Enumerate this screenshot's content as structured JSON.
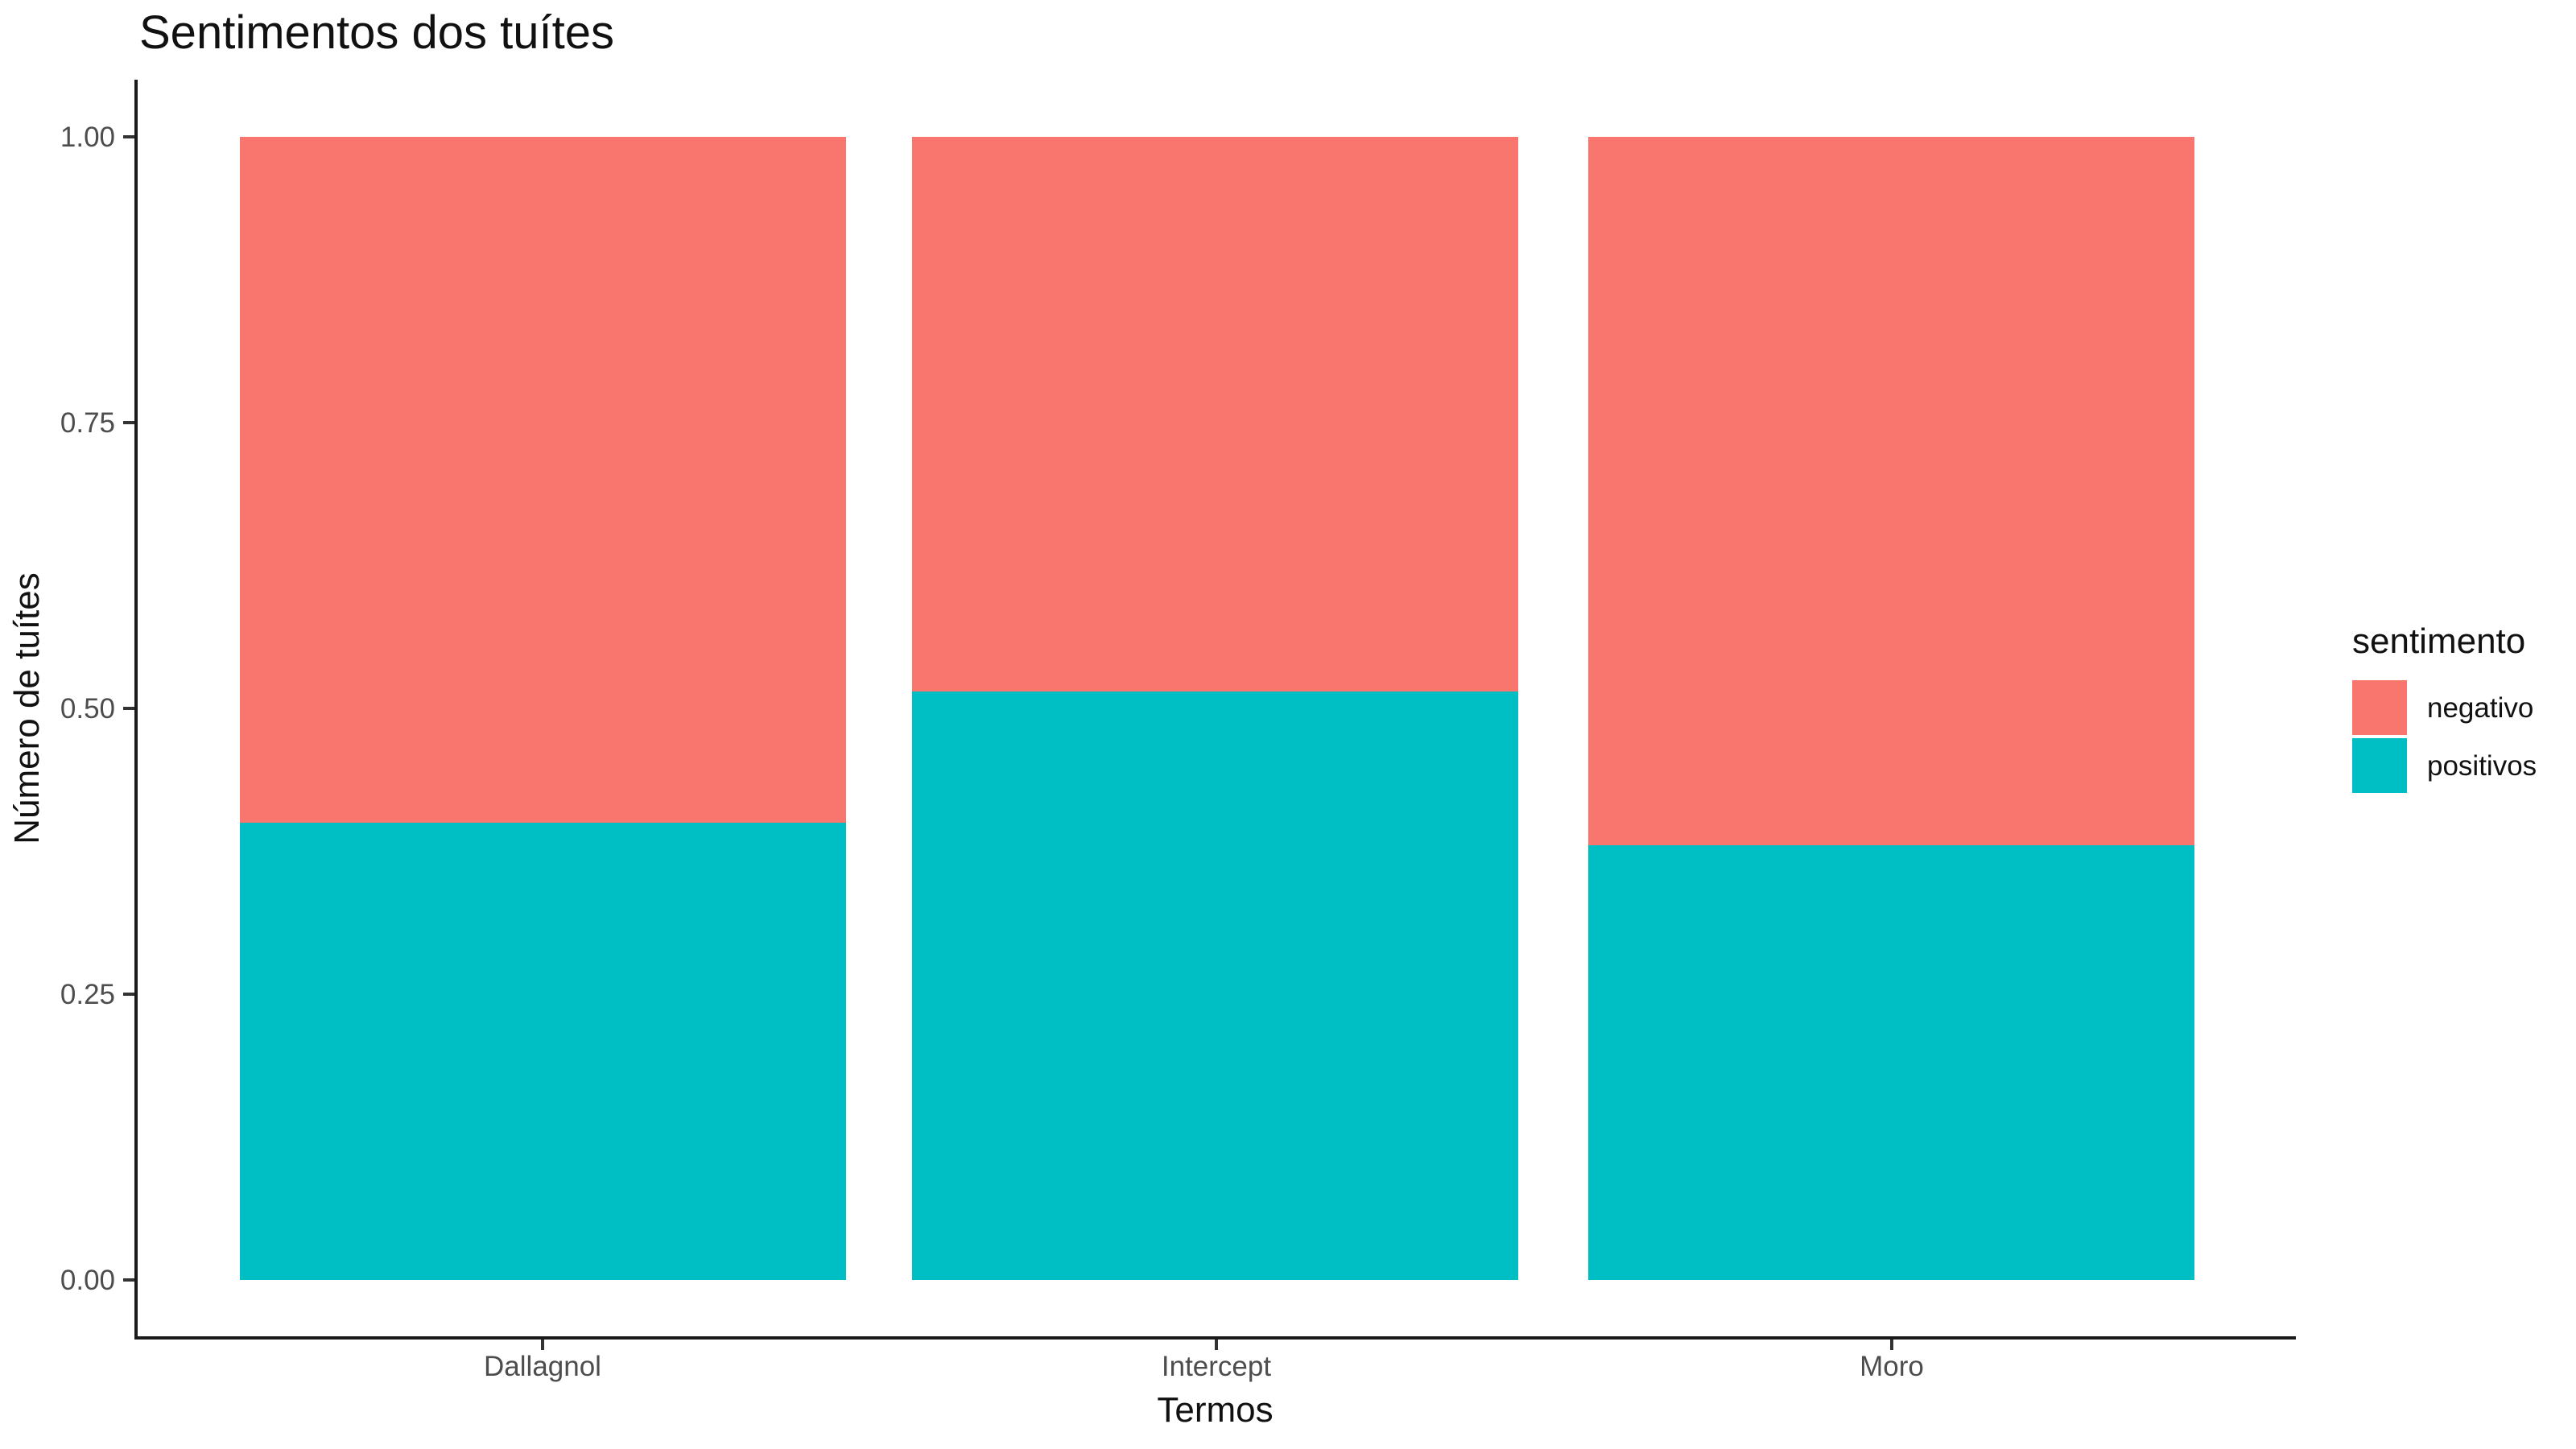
{
  "chart_data": {
    "type": "bar",
    "stacked": true,
    "normalized": true,
    "title": "Sentimentos dos tuítes",
    "xlabel": "Termos",
    "ylabel": "Número de tuítes",
    "categories": [
      "Dallagnol",
      "Intercept",
      "Moro"
    ],
    "series": [
      {
        "name": "negativo",
        "color": "#F8766D",
        "values": [
          0.6,
          0.485,
          0.62
        ]
      },
      {
        "name": "positivos",
        "color": "#00BFC4",
        "values": [
          0.4,
          0.515,
          0.38
        ]
      }
    ],
    "ylim": [
      0,
      1
    ],
    "yticks": [
      "1.00",
      "0.75",
      "0.50",
      "0.25",
      "0.00"
    ],
    "grid": false,
    "legend_title": "sentimento",
    "legend_position": "right"
  },
  "colors": {
    "negativo": "#F8766D",
    "positivos": "#00BFC4",
    "axis_text": "#4d4d4d",
    "axis_line": "#1a1a1a"
  }
}
